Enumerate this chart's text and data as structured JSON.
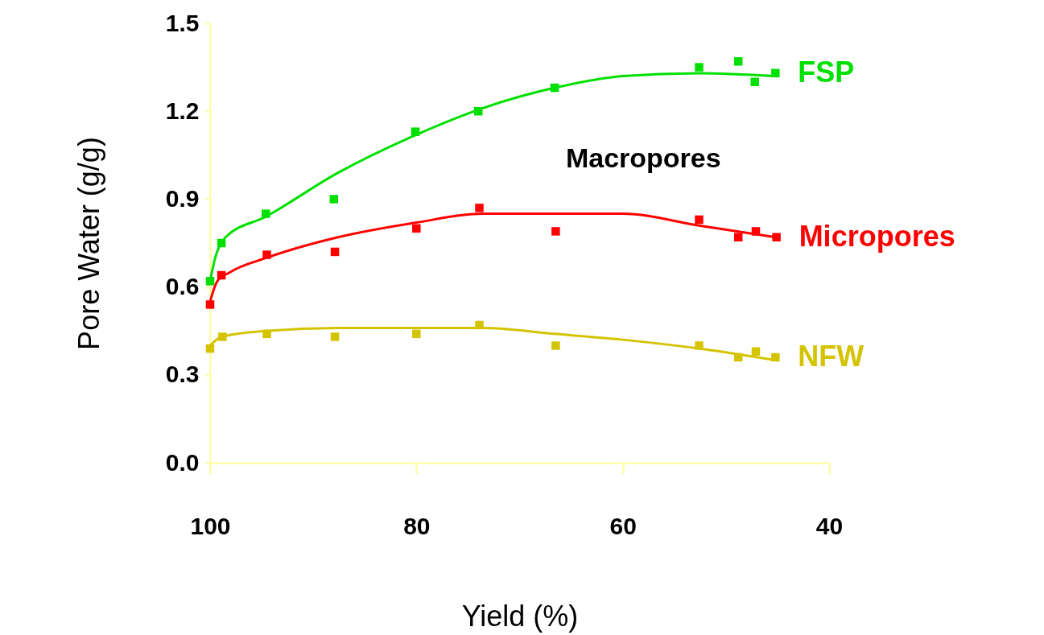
{
  "chart_data": {
    "type": "scatter",
    "xlabel": "Yield (%)",
    "ylabel": "Pore Water (g/g)",
    "xlim": [
      100,
      40
    ],
    "xticks": [
      100,
      80,
      60,
      40
    ],
    "ylim": [
      0,
      1.5
    ],
    "yticks": [
      {
        "value": 0,
        "label": "0.0"
      },
      0.3,
      0.6,
      0.9,
      1.2,
      1.5
    ],
    "grid": false,
    "annotations": [
      "Macropores"
    ],
    "series": [
      {
        "name": "FSP",
        "color": "#00e000",
        "marker": "square",
        "x": [
          100,
          98.9,
          94.6,
          88,
          80.1,
          74,
          66.6,
          52.6,
          48.8,
          47.2,
          45.2
        ],
        "values": [
          0.62,
          0.75,
          0.85,
          0.9,
          1.13,
          1.2,
          1.28,
          1.35,
          1.37,
          1.3,
          1.33
        ]
      },
      {
        "color": "#00e000",
        "type": "line",
        "marker": "none",
        "x": [
          100,
          99.5,
          98.5,
          94.6,
          87.6,
          80,
          73.6,
          66.6,
          60,
          52.6,
          45.2
        ],
        "values": [
          0.62,
          0.7,
          0.77,
          0.84,
          0.99,
          1.12,
          1.21,
          1.28,
          1.32,
          1.33,
          1.32
        ]
      },
      {
        "name": "Micropores",
        "color": "#ff0000",
        "marker": "square",
        "x": [
          100,
          98.9,
          94.5,
          87.9,
          80,
          73.9,
          66.5,
          52.6,
          48.8,
          47.1,
          45.1
        ],
        "values": [
          0.54,
          0.64,
          0.71,
          0.72,
          0.8,
          0.87,
          0.79,
          0.83,
          0.77,
          0.79,
          0.77
        ]
      },
      {
        "color": "#ff0000",
        "type": "line",
        "marker": "none",
        "x": [
          100,
          99.3,
          98.1,
          94.5,
          87.6,
          80,
          73.6,
          66.6,
          60,
          52.6,
          45.2
        ],
        "values": [
          0.55,
          0.62,
          0.65,
          0.7,
          0.77,
          0.82,
          0.85,
          0.85,
          0.85,
          0.81,
          0.77
        ]
      },
      {
        "name": "NFW",
        "color": "#d4c400",
        "marker": "square",
        "x": [
          100,
          98.8,
          94.5,
          87.9,
          80,
          73.9,
          66.5,
          52.6,
          48.8,
          47.1,
          45.2
        ],
        "values": [
          0.39,
          0.43,
          0.44,
          0.43,
          0.44,
          0.47,
          0.4,
          0.4,
          0.36,
          0.38,
          0.36
        ]
      },
      {
        "color": "#d4c400",
        "type": "line",
        "marker": "none",
        "x": [
          100,
          98.9,
          94.6,
          87.6,
          80,
          73.6,
          66.6,
          60,
          52.6,
          45.2
        ],
        "values": [
          0.4,
          0.43,
          0.45,
          0.46,
          0.46,
          0.46,
          0.44,
          0.42,
          0.39,
          0.35
        ]
      }
    ]
  }
}
